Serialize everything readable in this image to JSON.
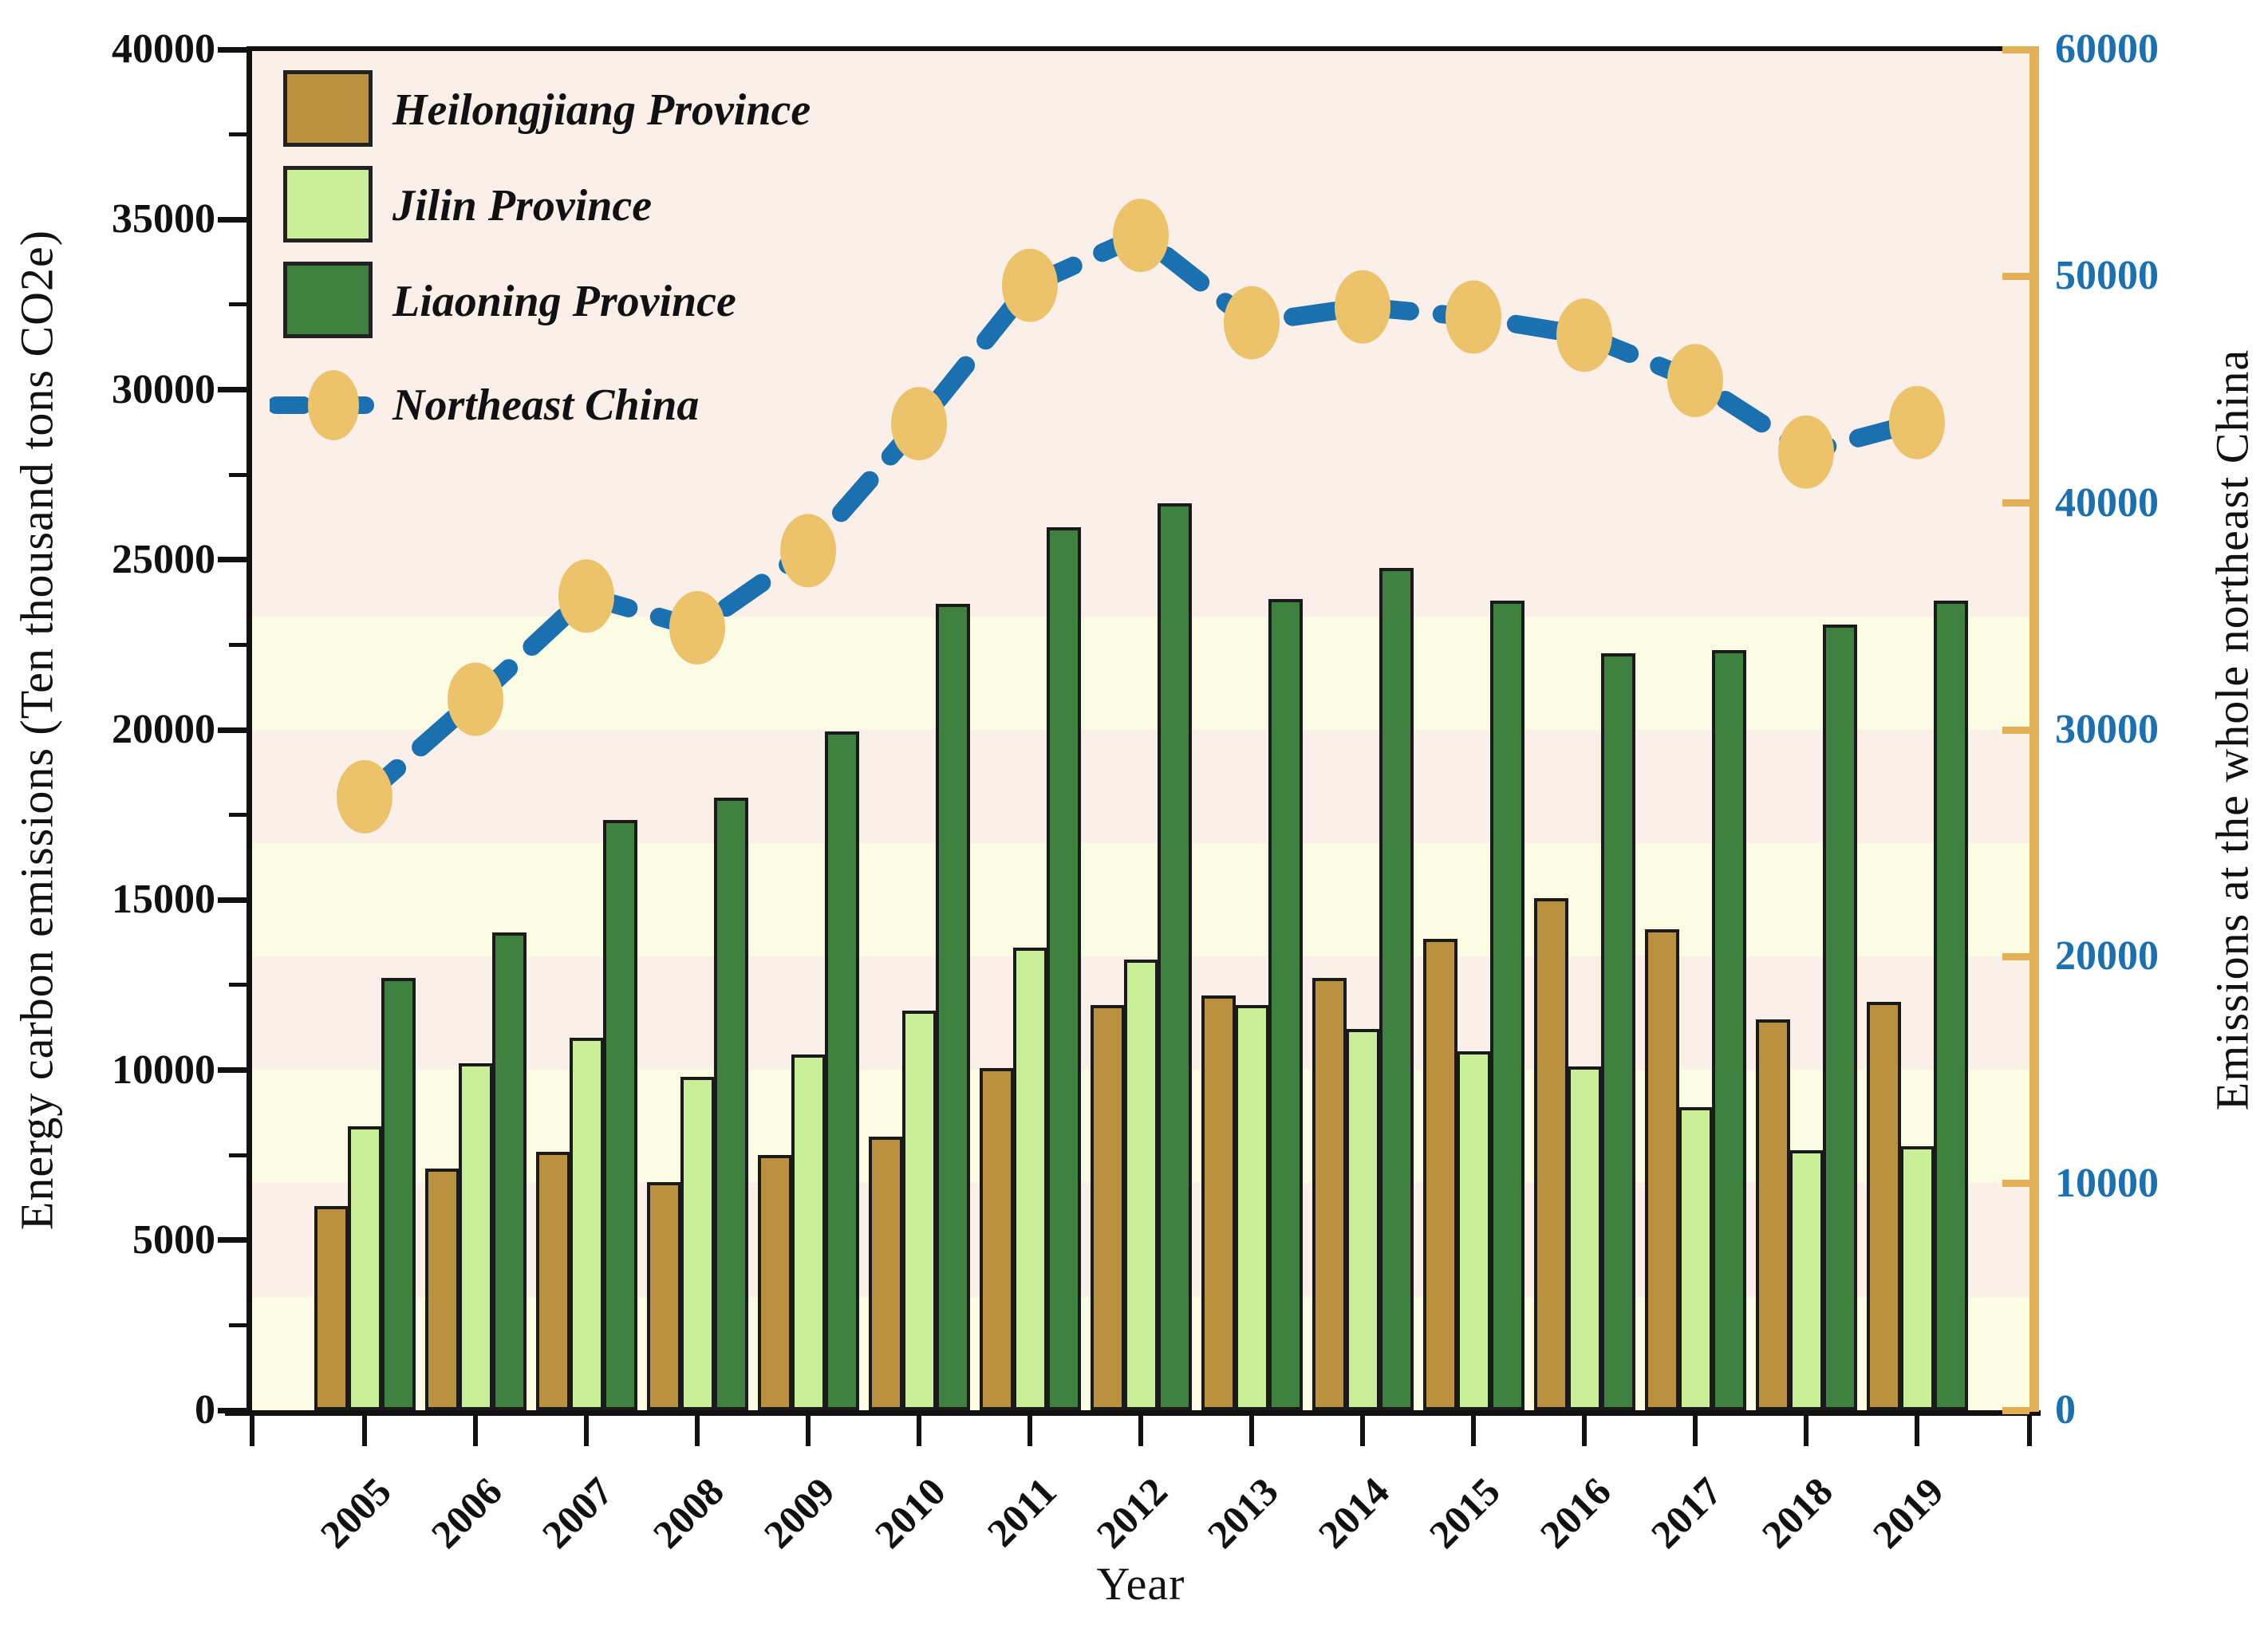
{
  "chart_data": {
    "type": "bar+line",
    "categories": [
      "2005",
      "2006",
      "2007",
      "2008",
      "2009",
      "2010",
      "2011",
      "2012",
      "2013",
      "2014",
      "2015",
      "2016",
      "2017",
      "2018",
      "2019"
    ],
    "series": [
      {
        "name": "Heilongjiang Province",
        "type": "bar",
        "axis": "left",
        "color": "#B9913F",
        "values": [
          6000,
          7100,
          7600,
          6700,
          7500,
          8050,
          10050,
          11900,
          12200,
          12700,
          13850,
          15050,
          14150,
          11500,
          12000
        ]
      },
      {
        "name": "Jilin Province",
        "type": "bar",
        "axis": "left",
        "color": "#C9F098",
        "values": [
          8350,
          10200,
          10950,
          9800,
          10450,
          11750,
          13600,
          13250,
          11900,
          11200,
          10550,
          10100,
          8900,
          7650,
          7750
        ]
      },
      {
        "name": "Liaoning Province",
        "type": "bar",
        "axis": "left",
        "color": "#3E8040",
        "values": [
          12700,
          14050,
          17350,
          18000,
          19950,
          23700,
          25950,
          26650,
          23850,
          24750,
          23800,
          22250,
          22350,
          23100,
          23800
        ]
      },
      {
        "name": "Northeast China",
        "type": "line",
        "axis": "right",
        "color": "#1B70B0",
        "marker_color": "#ECC36A",
        "values": [
          27050,
          31350,
          35900,
          34500,
          37900,
          43500,
          49600,
          51800,
          47950,
          48650,
          48200,
          47400,
          45400,
          42250,
          43550
        ]
      }
    ],
    "left_axis": {
      "label": "Energy carbon emissions (Ten thousand tons CO2e)",
      "min": 0,
      "max": 40000,
      "major_tick_labels": [
        "40000",
        "35000",
        "30000",
        "25000",
        "20000",
        "15000",
        "10000",
        "5000",
        "0"
      ],
      "minor_step": 2500,
      "tick_color": "#111111"
    },
    "right_axis": {
      "label": "Emissions at the whole northeast China",
      "min": 0,
      "max": 60000,
      "major_tick_labels": [
        "60000",
        "50000",
        "40000",
        "30000",
        "20000",
        "10000",
        "0"
      ],
      "tick_label_color": "#1B70B0",
      "spine_color": "#E3B056"
    },
    "x_axis": {
      "label": "Year"
    },
    "legend_entries": [
      "Heilongjiang Province",
      "Jilin Province",
      "Liaoning Province",
      "Northeast China"
    ],
    "grid": "off",
    "legend_position": "top-left",
    "plot_background_colors": [
      "#FBF0E9",
      "#FCFBE4"
    ]
  }
}
